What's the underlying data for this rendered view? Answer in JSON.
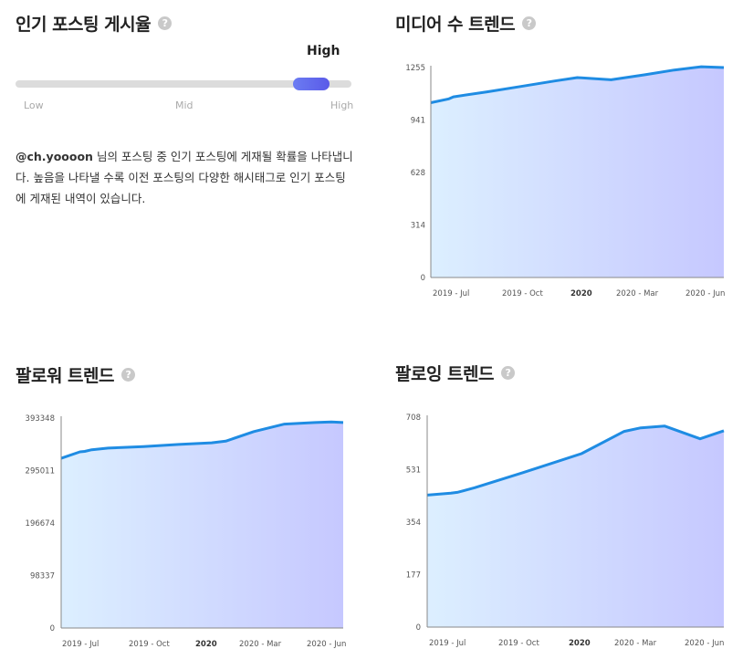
{
  "popular_posting": {
    "title": "인기 포스팅 게시율",
    "help_icon": "?",
    "level_label": "High",
    "level_fraction": 0.88,
    "scale_labels": [
      "Low",
      "Mid",
      "High"
    ],
    "description_handle": "@ch.yoooon",
    "description_text": " 님의 포스팅 중 인기 포스팅에 게재될 확률을 나타냅니다. 높음을 나타낼 수록 이전 포스팅의 다양한 해시태그로 인기 포스팅에 게재된 내역이 있습니다."
  },
  "colors": {
    "line": "#1f8ce3",
    "fill_start": "#dcefff",
    "fill_end": "#c6c8ff",
    "axis": "#888888"
  },
  "chart_data": [
    {
      "id": "media",
      "type": "area",
      "title": "미디어 수 트렌드",
      "yticks": [
        "1255",
        "941",
        "628",
        "314",
        "0"
      ],
      "ylim": [
        0,
        1255
      ],
      "xticks": [
        "2019 - Jul",
        "2019 - Oct",
        "2020",
        "2020 - Mar",
        "2020 - Jun"
      ],
      "xlim": [
        0,
        13
      ],
      "bold_xtick": "2020",
      "x": [
        0,
        0.8,
        1.0,
        2.5,
        4.0,
        5.5,
        6.5,
        8.0,
        9.5,
        10.8,
        12.0,
        13.0
      ],
      "values": [
        1045,
        1068,
        1080,
        1110,
        1142,
        1175,
        1195,
        1182,
        1212,
        1240,
        1260,
        1255
      ]
    },
    {
      "id": "followers",
      "type": "area",
      "title": "팔로워 트렌드",
      "yticks": [
        "393348",
        "295011",
        "196674",
        "98337",
        "0"
      ],
      "ylim": [
        0,
        393348
      ],
      "xticks": [
        "2019 - Jul",
        "2019 - Oct",
        "2020",
        "2020 - Mar",
        "2020 - Jun"
      ],
      "xlim": [
        0,
        12
      ],
      "bold_xtick": "2020",
      "x": [
        0,
        0.8,
        1.0,
        1.3,
        2.0,
        3.5,
        5.0,
        6.4,
        7.0,
        8.2,
        9.5,
        10.8,
        11.5,
        12.0
      ],
      "values": [
        318000,
        330000,
        331000,
        334000,
        337000,
        340000,
        344000,
        347000,
        350000,
        368000,
        382000,
        385000,
        386000,
        385000
      ]
    },
    {
      "id": "following",
      "type": "area",
      "title": "팔로잉 트렌드",
      "yticks": [
        "708",
        "531",
        "354",
        "177",
        "0"
      ],
      "ylim": [
        0,
        708
      ],
      "xticks": [
        "2019 - Jul",
        "2019 - Oct",
        "2020",
        "2020 - Mar",
        "2020 - Jun"
      ],
      "xlim": [
        0,
        12.5
      ],
      "bold_xtick": "2020",
      "x": [
        0,
        1.0,
        1.3,
        2.0,
        4.0,
        6.5,
        8.3,
        9.0,
        10.0,
        11.5,
        12.5
      ],
      "values": [
        445,
        452,
        455,
        470,
        520,
        585,
        660,
        672,
        678,
        635,
        662
      ]
    }
  ]
}
